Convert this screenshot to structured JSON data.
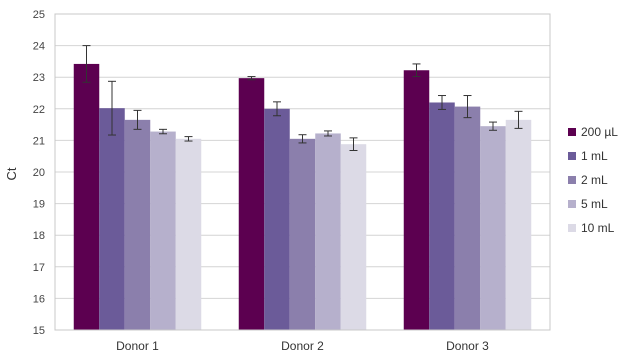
{
  "chart_data": {
    "type": "bar",
    "title": "",
    "xlabel": "",
    "ylabel": "Ct",
    "ylim": [
      15,
      25
    ],
    "yticks": [
      "15",
      "16",
      "17",
      "18",
      "19",
      "20",
      "21",
      "22",
      "23",
      "24",
      "25"
    ],
    "grid": true,
    "legend": "right",
    "categories": [
      "Donor 1",
      "Donor 2",
      "Donor 3"
    ],
    "series": [
      {
        "name": "200 µL",
        "color": "#5c0050",
        "values": [
          23.42,
          22.97,
          23.22
        ],
        "errors": [
          0.58,
          0.05,
          0.2
        ]
      },
      {
        "name": "1 mL",
        "color": "#6b5b99",
        "values": [
          22.02,
          22.0,
          22.2
        ],
        "errors": [
          0.85,
          0.22,
          0.22
        ]
      },
      {
        "name": "2 mL",
        "color": "#8b7fac",
        "values": [
          21.65,
          21.05,
          22.07
        ],
        "errors": [
          0.3,
          0.13,
          0.35
        ]
      },
      {
        "name": "5 mL",
        "color": "#b6b0cc",
        "values": [
          21.28,
          21.22,
          21.45
        ],
        "errors": [
          0.07,
          0.08,
          0.13
        ]
      },
      {
        "name": "10 mL",
        "color": "#dcdae6",
        "values": [
          21.05,
          20.88,
          21.65
        ],
        "errors": [
          0.07,
          0.2,
          0.27
        ]
      }
    ]
  }
}
